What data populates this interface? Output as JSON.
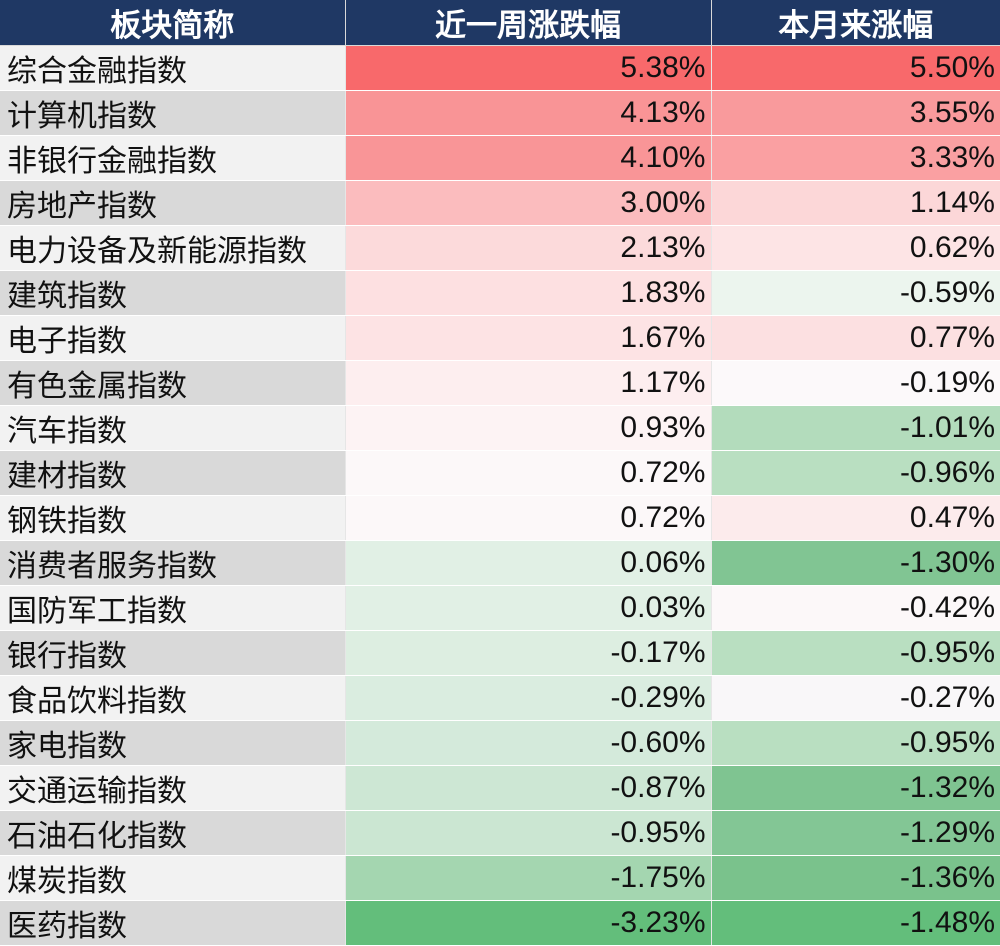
{
  "table": {
    "headers": [
      "板块简称",
      "近一周涨跌幅",
      "本月来涨幅"
    ],
    "rows": [
      {
        "name": "综合金融指数",
        "week": "5.38%",
        "month": "5.50%",
        "week_color": "#f8696b",
        "month_color": "#f8696b"
      },
      {
        "name": "计算机指数",
        "week": "4.13%",
        "month": "3.55%",
        "week_color": "#f99496",
        "month_color": "#f99a9c"
      },
      {
        "name": "非银行金融指数",
        "week": "4.10%",
        "month": "3.33%",
        "week_color": "#f99597",
        "month_color": "#faa0a2"
      },
      {
        "name": "房地产指数",
        "week": "3.00%",
        "month": "1.14%",
        "week_color": "#fbbcbe",
        "month_color": "#fcd7d8"
      },
      {
        "name": "电力设备及新能源指数",
        "week": "2.13%",
        "month": "0.62%",
        "week_color": "#fcdadb",
        "month_color": "#fde4e5"
      },
      {
        "name": "建筑指数",
        "week": "1.83%",
        "month": "-0.59%",
        "week_color": "#fde0e1",
        "month_color": "#ecf5ee"
      },
      {
        "name": "电子指数",
        "week": "1.67%",
        "month": "0.77%",
        "week_color": "#fde3e4",
        "month_color": "#fce0e1"
      },
      {
        "name": "有色金属指数",
        "week": "1.17%",
        "month": "-0.19%",
        "week_color": "#fdeeef",
        "month_color": "#fcf9fa"
      },
      {
        "name": "汽车指数",
        "week": "0.93%",
        "month": "-1.01%",
        "week_color": "#fdf3f4",
        "month_color": "#b3dcbc"
      },
      {
        "name": "建材指数",
        "week": "0.72%",
        "month": "-0.96%",
        "week_color": "#fcf8f9",
        "month_color": "#b9dfc1"
      },
      {
        "name": "钢铁指数",
        "week": "0.72%",
        "month": "0.47%",
        "week_color": "#fcf8f9",
        "month_color": "#fcebec"
      },
      {
        "name": "消费者服务指数",
        "week": "0.06%",
        "month": "-1.30%",
        "week_color": "#e1f0e5",
        "month_color": "#81c593"
      },
      {
        "name": "国防军工指数",
        "week": "0.03%",
        "month": "-0.42%",
        "week_color": "#e1f0e5",
        "month_color": "#fcf8f9"
      },
      {
        "name": "银行指数",
        "week": "-0.17%",
        "month": "-0.95%",
        "week_color": "#ddeee1",
        "month_color": "#b9dfc1"
      },
      {
        "name": "食品饮料指数",
        "week": "-0.29%",
        "month": "-0.27%",
        "week_color": "#daede0",
        "month_color": "#f9f7f9"
      },
      {
        "name": "家电指数",
        "week": "-0.60%",
        "month": "-0.95%",
        "week_color": "#d4eadb",
        "month_color": "#b9dfc1"
      },
      {
        "name": "交通运输指数",
        "week": "-0.87%",
        "month": "-1.32%",
        "week_color": "#cde7d4",
        "month_color": "#7fc491"
      },
      {
        "name": "石油石化指数",
        "week": "-0.95%",
        "month": "-1.29%",
        "week_color": "#cbe6d2",
        "month_color": "#83c695"
      },
      {
        "name": "煤炭指数",
        "week": "-1.75%",
        "month": "-1.36%",
        "week_color": "#a4d6b0",
        "month_color": "#7ac28c"
      },
      {
        "name": "医药指数",
        "week": "-3.23%",
        "month": "-1.48%",
        "week_color": "#63be7b",
        "month_color": "#63be7b"
      }
    ]
  }
}
